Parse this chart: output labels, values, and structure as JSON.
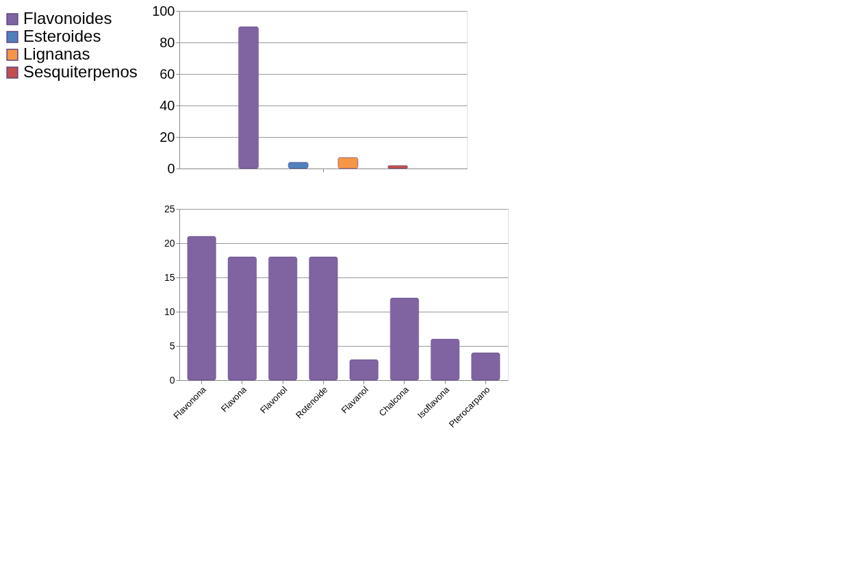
{
  "chart_data": [
    {
      "type": "bar",
      "categories": [
        null
      ],
      "series": [
        {
          "name": "Flavonoides",
          "color": "#8064a2",
          "values": [
            90
          ]
        },
        {
          "name": "Esteroides",
          "color": "#4f81bd",
          "values": [
            4
          ]
        },
        {
          "name": "Lignanas",
          "color": "#f79646",
          "values": [
            7
          ]
        },
        {
          "name": "Sesquiterpenos",
          "color": "#c0504d",
          "values": [
            2
          ]
        }
      ],
      "ylim": [
        0,
        100
      ],
      "yticks": [
        0,
        20,
        40,
        60,
        80,
        100
      ],
      "grid": "y",
      "legend": "left"
    },
    {
      "type": "bar",
      "categories": [
        "Flavonona",
        "Flavona",
        "Flavonol",
        "Rotenoide",
        "Flavanol",
        "Chalcona",
        "Isoflavona",
        "Pterocarpano"
      ],
      "values": [
        21,
        18,
        18,
        18,
        3,
        12,
        6,
        4
      ],
      "color": "#8064a2",
      "ylim": [
        0,
        25
      ],
      "yticks": [
        0,
        5,
        10,
        15,
        20,
        25
      ],
      "grid": "y"
    }
  ]
}
